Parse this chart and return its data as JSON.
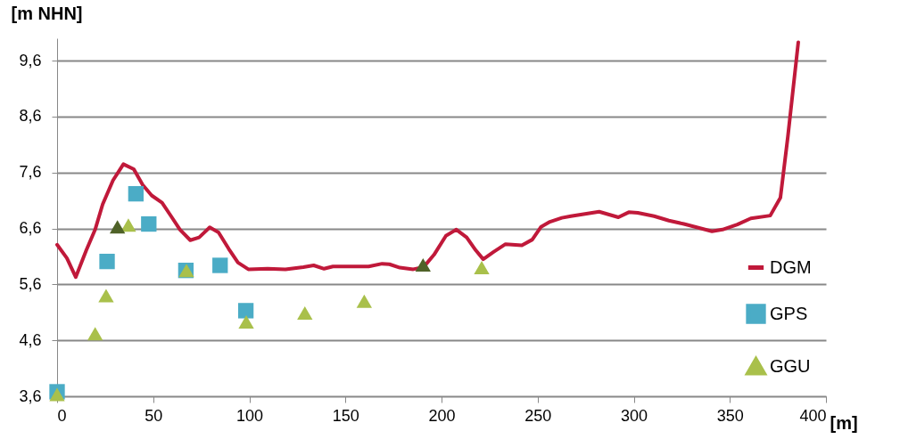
{
  "chart_data": {
    "type": "line",
    "ylabel": "[m NHN]",
    "xlabel": "[m]",
    "xlim": [
      0,
      400
    ],
    "xticks": [
      0,
      50,
      100,
      150,
      200,
      250,
      300,
      350,
      400
    ],
    "ylim": [
      3.6,
      10.0
    ],
    "yticks": [
      {
        "value": 3.6,
        "label": "3,6"
      },
      {
        "value": 4.6,
        "label": "4,6"
      },
      {
        "value": 5.6,
        "label": "5,6"
      },
      {
        "value": 6.6,
        "label": "6,6"
      },
      {
        "value": 7.6,
        "label": "7,6"
      },
      {
        "value": 8.6,
        "label": "8,6"
      },
      {
        "value": 9.6,
        "label": "9,6"
      }
    ],
    "grid": "y",
    "legend": "bottom right",
    "series": [
      {
        "name": "DGM",
        "color": "#c0193a",
        "marker": "none",
        "line_style": "solid",
        "x": [
          0,
          5.1,
          9.7,
          15.2,
          19.8,
          23.7,
          29.1,
          34.5,
          39.9,
          44.5,
          49.2,
          54.6,
          59.3,
          63.9,
          69.3,
          73.9,
          79.4,
          84.0,
          89.4,
          94.1,
          99.5,
          109.5,
          118.8,
          128.1,
          133.5,
          138.9,
          143.5,
          162.1,
          169.1,
          172.9,
          178.3,
          185.3,
          190.7,
          196.1,
          202.3,
          207.7,
          213.1,
          217.8,
          221.7,
          227.1,
          233.3,
          241.8,
          247.2,
          251.8,
          256.4,
          262.6,
          267.3,
          282.0,
          292.0,
          297.4,
          302.1,
          310.6,
          318.3,
          326.1,
          340.7,
          346.2,
          353.9,
          360.9,
          371.0,
          376.3,
          380.2,
          385.6
        ],
        "values": [
          6.31,
          6.07,
          5.73,
          6.21,
          6.58,
          7.03,
          7.46,
          7.75,
          7.66,
          7.38,
          7.19,
          7.06,
          6.82,
          6.58,
          6.39,
          6.44,
          6.62,
          6.53,
          6.23,
          5.99,
          5.87,
          5.88,
          5.87,
          5.91,
          5.94,
          5.88,
          5.92,
          5.92,
          5.97,
          5.96,
          5.9,
          5.87,
          5.91,
          6.13,
          6.47,
          6.58,
          6.44,
          6.21,
          6.05,
          6.18,
          6.32,
          6.3,
          6.4,
          6.63,
          6.72,
          6.79,
          6.82,
          6.9,
          6.8,
          6.89,
          6.88,
          6.82,
          6.74,
          6.68,
          6.55,
          6.58,
          6.67,
          6.78,
          6.83,
          7.15,
          8.25,
          9.93
        ]
      },
      {
        "name": "GPS",
        "type": "scatter",
        "color": "#4bacc6",
        "marker": "square",
        "x": [
          0,
          26.0,
          41.0,
          47.7,
          67.0,
          84.8,
          98.2
        ],
        "values": [
          3.68,
          6.01,
          7.22,
          6.68,
          5.85,
          5.94,
          5.13
        ]
      },
      {
        "name": "GGU",
        "type": "scatter",
        "color": "#a9c04b",
        "marker": "triangle",
        "x": [
          0,
          19.8,
          25.5,
          37.1,
          67.3,
          98.4,
          128.9,
          159.8,
          220.9
        ],
        "values": [
          3.63,
          4.72,
          5.4,
          6.66,
          5.85,
          4.93,
          5.09,
          5.3,
          5.9
        ]
      },
      {
        "type": "scatter",
        "color": "#4f6228",
        "marker": "triangle",
        "x": [
          31.4,
          190.4
        ],
        "values": [
          6.63,
          5.95
        ]
      }
    ]
  }
}
